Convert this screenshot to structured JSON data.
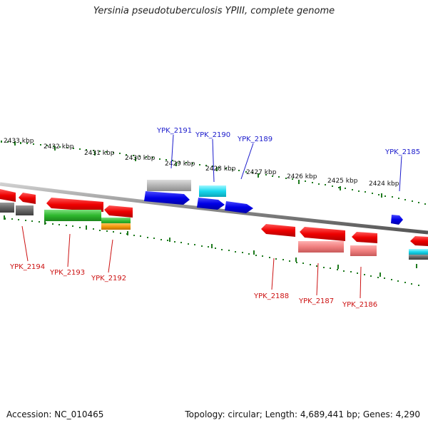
{
  "header": {
    "title": "Yersinia pseudotuberculosis YPIII, complete genome"
  },
  "footer": {
    "accession": "Accession: NC_010465",
    "summary": "Topology: circular; Length: 4,689,441 bp; Genes: 4,290"
  },
  "colors": {
    "forward_label": "#1a1acc",
    "reverse_label": "#cc1111",
    "backbone": "#888888",
    "tick": "#1e7a1e"
  },
  "ticks": [
    "2433 kbp",
    "2432 kbp",
    "2431 kbp",
    "2430 kbp",
    "2429 kbp",
    "2428 kbp",
    "2427 kbp",
    "2426 kbp",
    "2425 kbp",
    "2424 kbp"
  ],
  "forward_genes": [
    "YPK_2191",
    "YPK_2190",
    "YPK_2189",
    "YPK_2185"
  ],
  "reverse_genes": [
    "YPK_2194",
    "YPK_2193",
    "YPK_2192",
    "YPK_2188",
    "YPK_2187",
    "YPK_2186"
  ]
}
